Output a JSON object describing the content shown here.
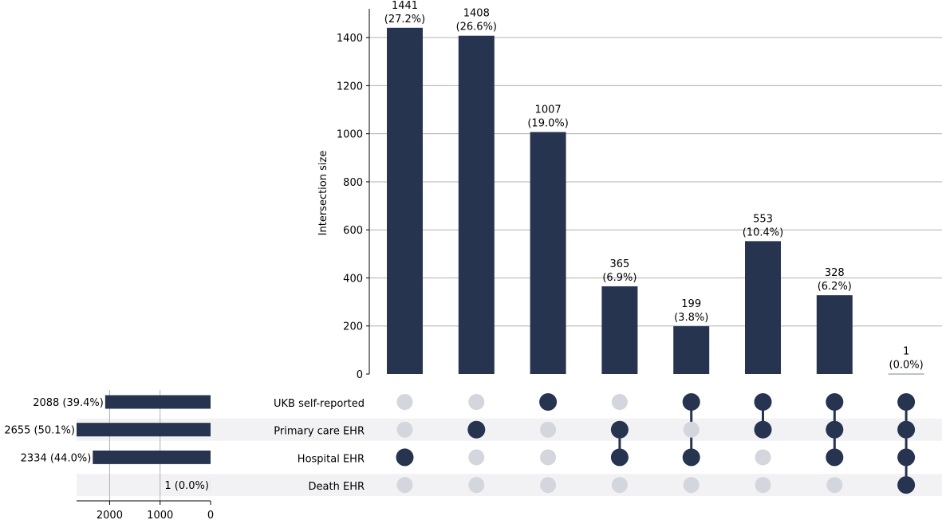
{
  "colors": {
    "bar": "#263450",
    "dot_active": "#263450",
    "dot_inactive": "#d3d6dc",
    "row_shade": "#f2f2f5",
    "grid": "#b0b0b0"
  },
  "chart_data": {
    "type": "bar",
    "subtype": "upset",
    "intersection_axis": {
      "label": "Intersection size",
      "ylim": [
        0,
        1520
      ],
      "ticks": [
        0,
        200,
        400,
        600,
        800,
        1000,
        1200,
        1400
      ],
      "grid": true
    },
    "set_size_axis": {
      "ticks": [
        2000,
        1000,
        0
      ],
      "xlim": [
        0,
        2655
      ],
      "grid": true
    },
    "sets": [
      {
        "name": "UKB self-reported",
        "size": 2088,
        "label": "2088 (39.4%)"
      },
      {
        "name": "Primary care EHR",
        "size": 2655,
        "label": "2655 (50.1%)"
      },
      {
        "name": "Hospital EHR",
        "size": 2334,
        "label": "2334 (44.0%)"
      },
      {
        "name": "Death EHR",
        "size": 1,
        "label": "1 (0.0%)"
      }
    ],
    "intersections": [
      {
        "value": 1441,
        "count_label": "1441",
        "pct_label": "(27.2%)",
        "members": [
          2
        ]
      },
      {
        "value": 1408,
        "count_label": "1408",
        "pct_label": "(26.6%)",
        "members": [
          1
        ]
      },
      {
        "value": 1007,
        "count_label": "1007",
        "pct_label": "(19.0%)",
        "members": [
          0
        ]
      },
      {
        "value": 365,
        "count_label": "365",
        "pct_label": "(6.9%)",
        "members": [
          1,
          2
        ]
      },
      {
        "value": 199,
        "count_label": "199",
        "pct_label": "(3.8%)",
        "members": [
          0,
          2
        ]
      },
      {
        "value": 553,
        "count_label": "553",
        "pct_label": "(10.4%)",
        "members": [
          0,
          1
        ]
      },
      {
        "value": 328,
        "count_label": "328",
        "pct_label": "(6.2%)",
        "members": [
          0,
          1,
          2
        ]
      },
      {
        "value": 1,
        "count_label": "1",
        "pct_label": "(0.0%)",
        "members": [
          0,
          1,
          2,
          3
        ]
      }
    ]
  }
}
